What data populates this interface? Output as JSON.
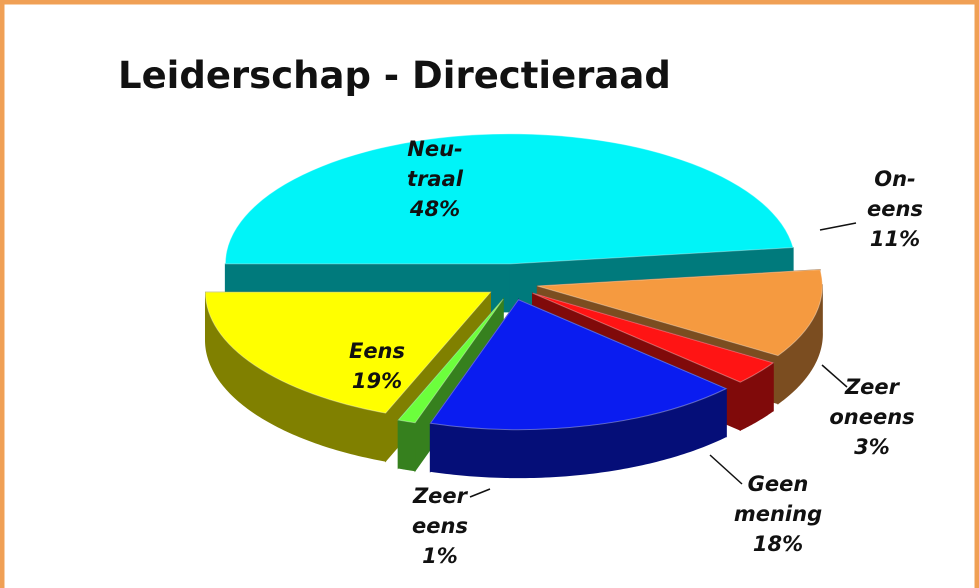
{
  "chart_data": {
    "type": "pie3d",
    "title": "Leiderschap - Directieraad",
    "categories": [
      [
        "Neu-",
        "traal"
      ],
      [
        "On-",
        "eens"
      ],
      [
        "Zeer",
        "oneens"
      ],
      [
        "Geen",
        "mening"
      ],
      [
        "Zeer",
        "eens"
      ],
      [
        "Eens"
      ]
    ],
    "values": [
      48,
      11,
      3,
      18,
      1,
      19
    ],
    "value_labels": [
      "48%",
      "11%",
      "3%",
      "18%",
      "1%",
      "19%"
    ],
    "colors": [
      "#00f4f8",
      "#f59a40",
      "#ff1414",
      "#0a1cf0",
      "#6cff3c",
      "#ffff00"
    ]
  }
}
